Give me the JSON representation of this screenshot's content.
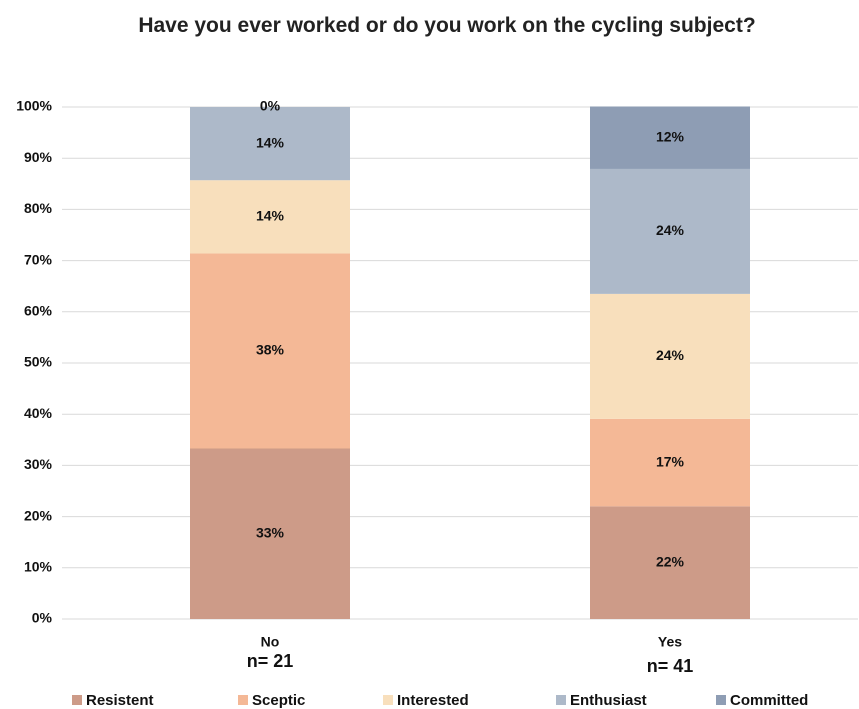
{
  "chart_data": {
    "type": "stacked_bar",
    "title": "Have you ever worked or do you work on the cycling subject?",
    "categories": [
      "No",
      "Yes"
    ],
    "sample_sizes": [
      "n= 21",
      "n= 41"
    ],
    "series": [
      {
        "name": "Resistent",
        "color": "#cd9b88",
        "values": [
          33.3,
          22.0
        ],
        "value_labels": [
          "33%",
          "22%"
        ]
      },
      {
        "name": "Sceptic",
        "color": "#f4b896",
        "values": [
          38.1,
          17.1
        ],
        "value_labels": [
          "38%",
          "17%"
        ]
      },
      {
        "name": "Interested",
        "color": "#f8dfbc",
        "values": [
          14.3,
          24.4
        ],
        "value_labels": [
          "14%",
          "24%"
        ]
      },
      {
        "name": "Enthusiast",
        "color": "#adb9c9",
        "values": [
          14.3,
          24.4
        ],
        "value_labels": [
          "14%",
          "24%"
        ]
      },
      {
        "name": "Committed",
        "color": "#8e9db4",
        "values": [
          0,
          12.2
        ],
        "value_labels": [
          "0%",
          "12%"
        ]
      }
    ],
    "ylim": [
      0,
      100
    ],
    "yticks": [
      {
        "value": 0,
        "label": "0%"
      },
      {
        "value": 10,
        "label": "10%"
      },
      {
        "value": 20,
        "label": "20%"
      },
      {
        "value": 30,
        "label": "30%"
      },
      {
        "value": 40,
        "label": "40%"
      },
      {
        "value": 50,
        "label": "50%"
      },
      {
        "value": 60,
        "label": "60%"
      },
      {
        "value": 70,
        "label": "70%"
      },
      {
        "value": 80,
        "label": "80%"
      },
      {
        "value": 90,
        "label": "90%"
      },
      {
        "value": 100,
        "label": "100%"
      }
    ],
    "grid": true,
    "legend": "bottom"
  }
}
